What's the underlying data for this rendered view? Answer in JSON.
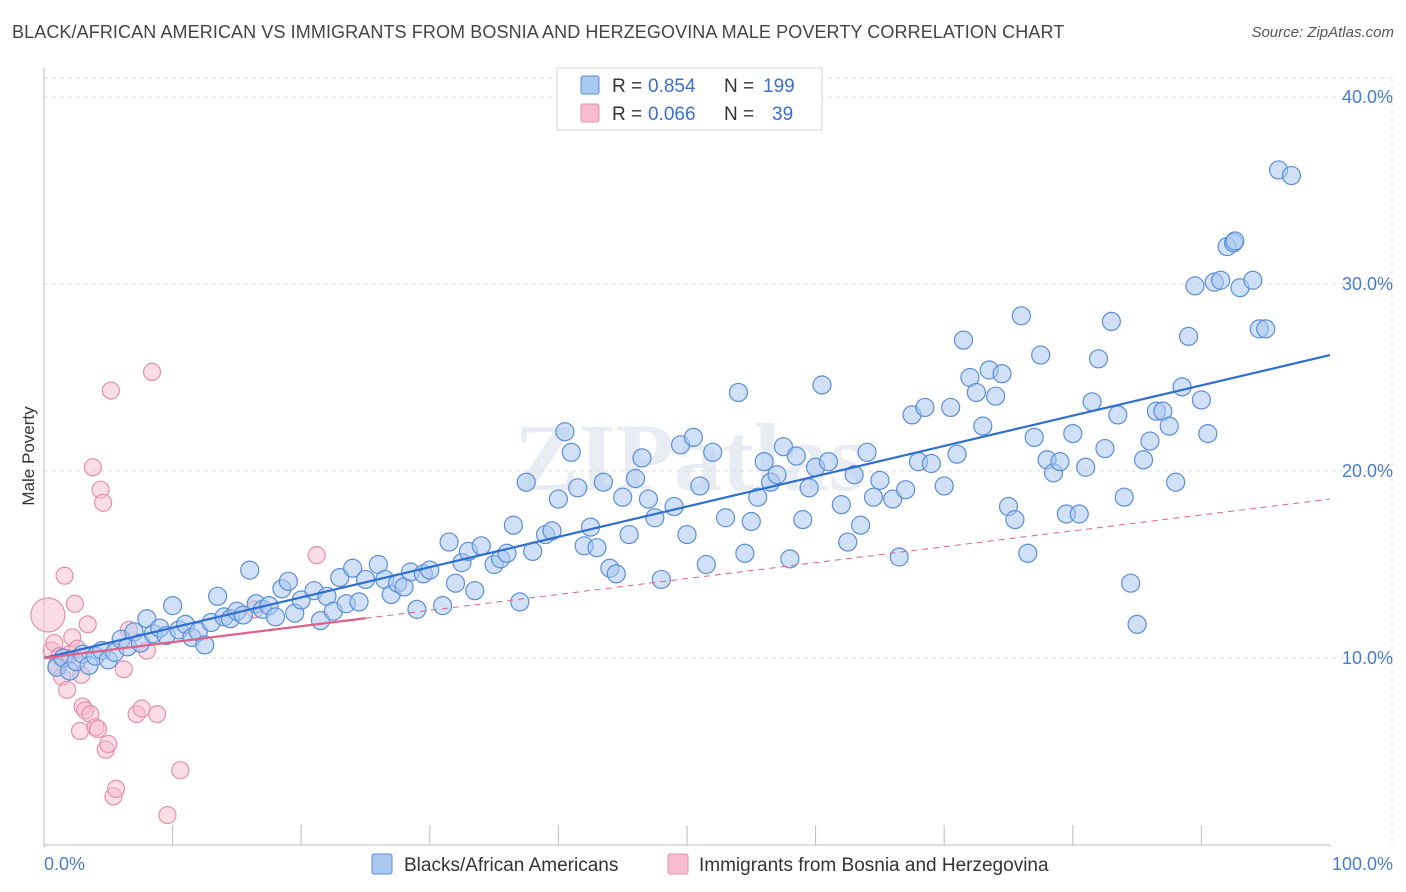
{
  "title": "BLACK/AFRICAN AMERICAN VS IMMIGRANTS FROM BOSNIA AND HERZEGOVINA MALE POVERTY CORRELATION CHART",
  "source": "Source: ZipAtlas.com",
  "watermark": "ZIPatlas",
  "colors": {
    "blue_fill": "#a9c8f0",
    "blue_stroke": "#5b8ed9",
    "blue_line": "#2f6fd0",
    "pink_fill": "#f7bccd",
    "pink_stroke": "#e590ab",
    "pink_line": "#e0608a",
    "grid": "#dddddd",
    "tick": "#4a7ccc"
  },
  "legend": {
    "r_label": "R =",
    "n_label": "N =",
    "rows": [
      {
        "series": "blue",
        "r": "0.854",
        "n": "199"
      },
      {
        "series": "pink",
        "r": "0.066",
        "n": "39"
      }
    ]
  },
  "chart_data": {
    "type": "scatter",
    "title": "BLACK/AFRICAN AMERICAN VS IMMIGRANTS FROM BOSNIA AND HERZEGOVINA MALE POVERTY CORRELATION CHART",
    "xlabel": "",
    "ylabel": "Male Poverty",
    "xlim": [
      0,
      100
    ],
    "ylim": [
      0,
      40
    ],
    "x_tick_labels": [
      "0.0%",
      "100.0%"
    ],
    "y_ticks": [
      10,
      20,
      30,
      40
    ],
    "y_tick_labels": [
      "10.0%",
      "20.0%",
      "30.0%",
      "40.0%"
    ],
    "grid": true,
    "series": [
      {
        "name": "Blacks/African Americans",
        "color": "#5b8ed9",
        "trend": {
          "x0": 0,
          "y0": 10.0,
          "x1": 100,
          "y1": 26.2,
          "dashed_from": null
        },
        "points": [
          [
            1,
            9.5
          ],
          [
            1.5,
            10
          ],
          [
            2,
            9.3
          ],
          [
            2.5,
            9.8
          ],
          [
            3,
            10.2
          ],
          [
            3.5,
            9.6
          ],
          [
            4,
            10.1
          ],
          [
            4.5,
            10.4
          ],
          [
            5,
            9.9
          ],
          [
            5.5,
            10.3
          ],
          [
            6,
            11
          ],
          [
            6.5,
            10.6
          ],
          [
            7,
            11.4
          ],
          [
            7.5,
            10.8
          ],
          [
            8,
            12.1
          ],
          [
            8.5,
            11.3
          ],
          [
            9,
            11.6
          ],
          [
            9.5,
            11.2
          ],
          [
            10,
            12.8
          ],
          [
            10.5,
            11.5
          ],
          [
            11,
            11.8
          ],
          [
            11.5,
            11.1
          ],
          [
            12,
            11.4
          ],
          [
            12.5,
            10.7
          ],
          [
            13,
            11.9
          ],
          [
            13.5,
            13.3
          ],
          [
            14,
            12.2
          ],
          [
            14.5,
            12.1
          ],
          [
            15,
            12.5
          ],
          [
            15.5,
            12.3
          ],
          [
            16,
            14.7
          ],
          [
            16.5,
            12.9
          ],
          [
            17,
            12.6
          ],
          [
            17.5,
            12.8
          ],
          [
            18,
            12.2
          ],
          [
            18.5,
            13.7
          ],
          [
            19,
            14.1
          ],
          [
            19.5,
            12.4
          ],
          [
            20,
            13.1
          ],
          [
            21,
            13.6
          ],
          [
            21.5,
            12.0
          ],
          [
            22,
            13.3
          ],
          [
            22.5,
            12.5
          ],
          [
            23,
            14.3
          ],
          [
            23.5,
            12.9
          ],
          [
            24,
            14.8
          ],
          [
            24.5,
            13.0
          ],
          [
            25,
            14.2
          ],
          [
            26,
            15.0
          ],
          [
            26.5,
            14.2
          ],
          [
            27,
            13.4
          ],
          [
            27.5,
            14.0
          ],
          [
            28,
            13.8
          ],
          [
            28.5,
            14.6
          ],
          [
            29,
            12.6
          ],
          [
            29.5,
            14.5
          ],
          [
            30,
            14.7
          ],
          [
            31,
            12.8
          ],
          [
            31.5,
            16.2
          ],
          [
            32,
            14.0
          ],
          [
            32.5,
            15.1
          ],
          [
            33,
            15.7
          ],
          [
            33.5,
            13.6
          ],
          [
            34,
            16.0
          ],
          [
            35,
            15.0
          ],
          [
            35.5,
            15.3
          ],
          [
            36,
            15.6
          ],
          [
            36.5,
            17.1
          ],
          [
            37,
            13.0
          ],
          [
            37.5,
            19.4
          ],
          [
            38,
            15.7
          ],
          [
            39,
            16.6
          ],
          [
            39.5,
            16.8
          ],
          [
            40,
            18.5
          ],
          [
            40.5,
            22.1
          ],
          [
            41,
            21.0
          ],
          [
            41.5,
            19.1
          ],
          [
            42,
            16.0
          ],
          [
            42.5,
            17.0
          ],
          [
            43,
            15.9
          ],
          [
            43.5,
            19.4
          ],
          [
            44,
            14.8
          ],
          [
            44.5,
            14.5
          ],
          [
            45,
            18.6
          ],
          [
            45.5,
            16.6
          ],
          [
            46,
            19.6
          ],
          [
            46.5,
            20.7
          ],
          [
            47,
            18.5
          ],
          [
            47.5,
            17.5
          ],
          [
            48,
            14.2
          ],
          [
            49,
            18.1
          ],
          [
            49.5,
            21.4
          ],
          [
            50,
            16.6
          ],
          [
            50.5,
            21.8
          ],
          [
            51,
            19.2
          ],
          [
            51.5,
            15.0
          ],
          [
            52,
            21.0
          ],
          [
            53,
            17.5
          ],
          [
            54,
            24.2
          ],
          [
            54.5,
            15.6
          ],
          [
            55,
            17.3
          ],
          [
            55.5,
            18.6
          ],
          [
            56,
            20.5
          ],
          [
            56.5,
            19.4
          ],
          [
            57,
            19.8
          ],
          [
            57.5,
            21.3
          ],
          [
            58,
            15.3
          ],
          [
            58.5,
            20.8
          ],
          [
            59,
            17.4
          ],
          [
            59.5,
            19.1
          ],
          [
            60,
            20.2
          ],
          [
            60.5,
            24.6
          ],
          [
            61,
            20.5
          ],
          [
            62,
            18.2
          ],
          [
            62.5,
            16.2
          ],
          [
            63,
            19.8
          ],
          [
            63.5,
            17.1
          ],
          [
            64,
            21.0
          ],
          [
            64.5,
            18.6
          ],
          [
            65,
            19.5
          ],
          [
            66,
            18.5
          ],
          [
            66.5,
            15.4
          ],
          [
            67,
            19.0
          ],
          [
            67.5,
            23.0
          ],
          [
            68,
            20.5
          ],
          [
            68.5,
            23.4
          ],
          [
            69,
            20.4
          ],
          [
            70,
            19.2
          ],
          [
            70.5,
            23.4
          ],
          [
            71,
            20.9
          ],
          [
            71.5,
            27.0
          ],
          [
            72,
            25.0
          ],
          [
            72.5,
            24.2
          ],
          [
            73,
            22.4
          ],
          [
            73.5,
            25.4
          ],
          [
            74,
            24.0
          ],
          [
            74.5,
            25.2
          ],
          [
            75,
            18.1
          ],
          [
            75.5,
            17.4
          ],
          [
            76,
            28.3
          ],
          [
            76.5,
            15.6
          ],
          [
            77,
            21.8
          ],
          [
            77.5,
            26.2
          ],
          [
            78,
            20.6
          ],
          [
            78.5,
            19.9
          ],
          [
            79,
            20.5
          ],
          [
            79.5,
            17.7
          ],
          [
            80,
            22.0
          ],
          [
            80.5,
            17.7
          ],
          [
            81,
            20.2
          ],
          [
            81.5,
            23.7
          ],
          [
            82,
            26.0
          ],
          [
            82.5,
            21.2
          ],
          [
            83,
            28.0
          ],
          [
            83.5,
            23.0
          ],
          [
            84,
            18.6
          ],
          [
            84.5,
            14.0
          ],
          [
            85,
            11.8
          ],
          [
            85.5,
            20.6
          ],
          [
            86,
            21.6
          ],
          [
            86.5,
            23.2
          ],
          [
            87,
            23.2
          ],
          [
            87.5,
            22.4
          ],
          [
            88,
            19.4
          ],
          [
            88.5,
            24.5
          ],
          [
            89,
            27.2
          ],
          [
            89.5,
            29.9
          ],
          [
            90,
            23.8
          ],
          [
            90.5,
            22.0
          ],
          [
            91,
            30.1
          ],
          [
            92,
            32.0
          ],
          [
            92.5,
            32.2
          ],
          [
            93,
            29.8
          ],
          [
            94,
            30.2
          ],
          [
            94.5,
            27.6
          ],
          [
            95,
            27.6
          ],
          [
            96,
            36.1
          ],
          [
            97,
            35.8
          ],
          [
            92.6,
            32.3
          ],
          [
            91.5,
            30.2
          ]
        ]
      },
      {
        "name": "Immigrants from Bosnia and Herzegovina",
        "color": "#e590ab",
        "trend": {
          "x0": 0,
          "y0": 10.0,
          "x1": 100,
          "y1": 18.5,
          "solid_until": 25
        },
        "points": [
          [
            0.3,
            12.3
          ],
          [
            0.6,
            10.4
          ],
          [
            0.8,
            10.8
          ],
          [
            1,
            9.6
          ],
          [
            1.2,
            10.1
          ],
          [
            1.4,
            9.0
          ],
          [
            1.6,
            14.4
          ],
          [
            1.8,
            8.3
          ],
          [
            2,
            10.2
          ],
          [
            2.2,
            11.1
          ],
          [
            2.4,
            12.9
          ],
          [
            2.6,
            10.5
          ],
          [
            2.8,
            6.1
          ],
          [
            3,
            7.4
          ],
          [
            3.2,
            7.2
          ],
          [
            3.4,
            11.8
          ],
          [
            3.6,
            7.0
          ],
          [
            3.8,
            20.2
          ],
          [
            4,
            6.3
          ],
          [
            4.2,
            6.2
          ],
          [
            4.4,
            19.0
          ],
          [
            4.6,
            18.3
          ],
          [
            4.8,
            5.1
          ],
          [
            5,
            5.4
          ],
          [
            5.2,
            24.3
          ],
          [
            5.4,
            2.6
          ],
          [
            5.6,
            3.0
          ],
          [
            6.2,
            9.4
          ],
          [
            6.6,
            11.5
          ],
          [
            7.2,
            7.0
          ],
          [
            7.6,
            7.3
          ],
          [
            8,
            10.4
          ],
          [
            8.4,
            25.3
          ],
          [
            8.8,
            7.0
          ],
          [
            9.6,
            1.6
          ],
          [
            10.6,
            4.0
          ],
          [
            16.4,
            12.6
          ],
          [
            21.2,
            15.5
          ],
          [
            2.9,
            9.1
          ]
        ]
      }
    ]
  },
  "bottom_legend": [
    {
      "series": "blue",
      "label": "Blacks/African Americans"
    },
    {
      "series": "pink",
      "label": "Immigrants from Bosnia and Herzegovina"
    }
  ]
}
